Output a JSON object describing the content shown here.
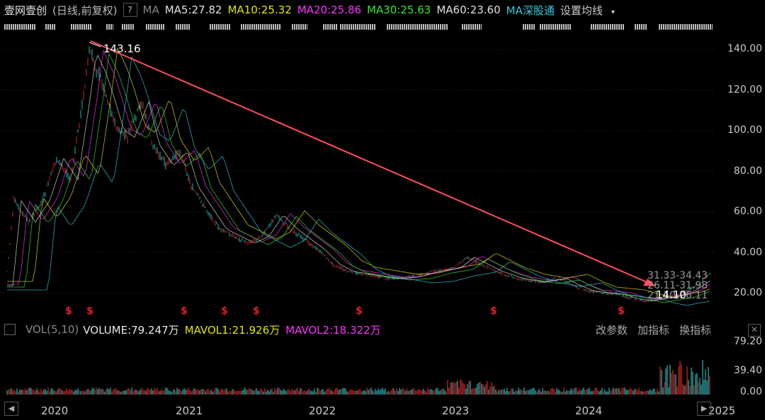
{
  "header": {
    "stock_name": "壹网壹创",
    "mode": "(日线,前复权)",
    "help": "?",
    "ma_label": "MA",
    "ma5": "MA5:27.82",
    "ma10": "MA10:25.32",
    "ma20": "MA20:25.86",
    "ma30": "MA30:25.63",
    "ma60": "MA60:23.60",
    "hk_link": "MA深股通",
    "set_ma": "设置均线"
  },
  "price_axis": [
    "140.00",
    "120.00",
    "100.00",
    "80.00",
    "60.00",
    "40.00",
    "20.00"
  ],
  "annotations": {
    "high": "143.16",
    "low": "14.10",
    "range1": "31.33-34.43",
    "range2": "26.11-31.98",
    "range3": "21.10-26.11"
  },
  "volume": {
    "label": "VOL(5,10)",
    "volume": "VOLUME:79.247万",
    "mavol1": "MAVOL1:21.926万",
    "mavol2": "MAVOL2:18.322万",
    "btn_params": "改参数",
    "btn_add": "加指标",
    "btn_switch": "换指标",
    "axis": [
      "79.20",
      "39.40",
      "0.00"
    ]
  },
  "x_axis": [
    "2020",
    "2021",
    "2022",
    "2023",
    "2024",
    "2025"
  ],
  "dividend_marker": "$",
  "colors": {
    "up": "#ff3333",
    "down": "#33dddd",
    "trend": "#ff4d5e",
    "ma_yellow": "#e6e600",
    "ma_magenta": "#ff33ff",
    "ma_green": "#33e633",
    "ma_cyan": "#33ccdd"
  }
}
